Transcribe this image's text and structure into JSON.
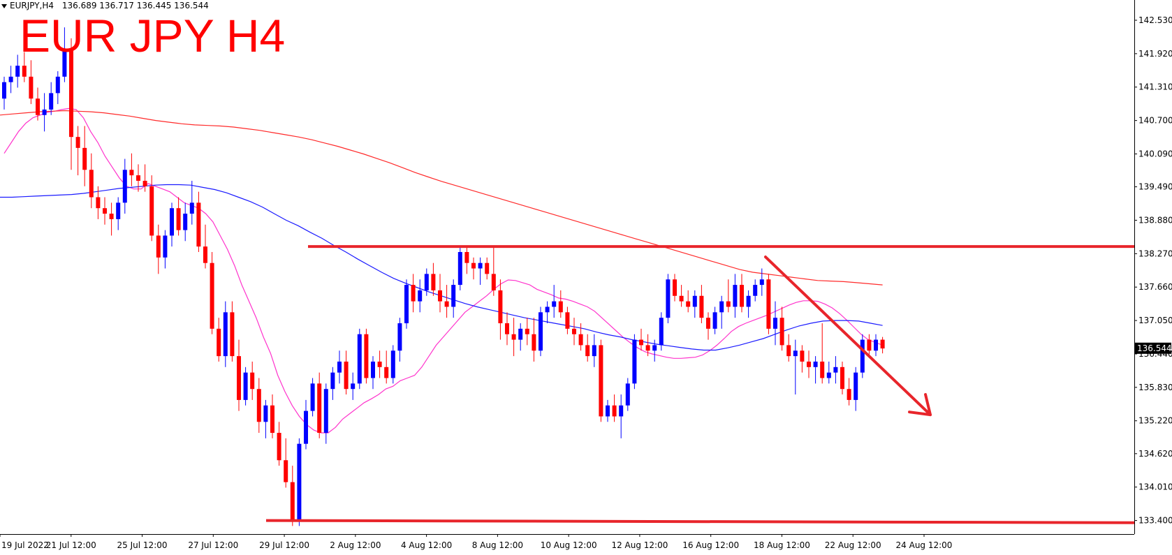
{
  "header": {
    "symbol": "EURJPY,H4",
    "ohlc": "136.689 136.717 136.445 136.544",
    "overlay_title": "EUR JPY H4"
  },
  "colors": {
    "bull": "#0000ff",
    "bear": "#ff0000",
    "ma_fast": "#ff33cc",
    "ma_mid": "#1a1aff",
    "ma_slow": "#ff2a2a",
    "drawing": "#e8252b"
  },
  "chart_data": {
    "type": "candlestick",
    "title": "EUR JPY H4",
    "y_axis": {
      "ticks": [
        "142.530",
        "141.920",
        "141.310",
        "140.700",
        "140.090",
        "139.490",
        "138.880",
        "138.270",
        "137.660",
        "137.050",
        "136.440",
        "135.830",
        "135.220",
        "134.620",
        "134.010",
        "133.400"
      ],
      "range": [
        133.28,
        142.67
      ],
      "current_price_label": "136.544"
    },
    "x_axis": {
      "ticks": [
        "19 Jul 2022",
        "21 Jul 12:00",
        "25 Jul 12:00",
        "27 Jul 12:00",
        "29 Jul 12:00",
        "2 Aug 12:00",
        "4 Aug 12:00",
        "8 Aug 12:00",
        "10 Aug 12:00",
        "12 Aug 12:00",
        "16 Aug 12:00",
        "18 Aug 12:00",
        "22 Aug 12:00",
        "24 Aug 12:00"
      ]
    },
    "candles": [
      [
        141.1,
        141.5,
        140.9,
        141.4
      ],
      [
        141.4,
        141.7,
        141.2,
        141.5
      ],
      [
        141.5,
        141.9,
        141.3,
        141.7
      ],
      [
        141.7,
        141.95,
        141.4,
        141.5
      ],
      [
        141.5,
        141.8,
        141.0,
        141.1
      ],
      [
        141.1,
        141.3,
        140.7,
        140.8
      ],
      [
        140.8,
        141.2,
        140.5,
        140.9
      ],
      [
        140.9,
        141.4,
        140.8,
        141.2
      ],
      [
        141.2,
        141.6,
        141.0,
        141.5
      ],
      [
        141.5,
        142.4,
        141.4,
        142.0
      ],
      [
        142.0,
        142.2,
        139.8,
        140.4
      ],
      [
        140.4,
        140.6,
        139.7,
        140.2
      ],
      [
        140.2,
        140.6,
        139.5,
        139.8
      ],
      [
        139.8,
        140.1,
        139.1,
        139.3
      ],
      [
        139.3,
        139.5,
        138.9,
        139.1
      ],
      [
        139.1,
        139.3,
        138.8,
        139.0
      ],
      [
        139.0,
        139.2,
        138.6,
        138.9
      ],
      [
        138.9,
        139.3,
        138.7,
        139.2
      ],
      [
        139.2,
        140.0,
        139.0,
        139.8
      ],
      [
        139.8,
        140.1,
        139.5,
        139.7
      ],
      [
        139.7,
        139.9,
        139.4,
        139.6
      ],
      [
        139.6,
        139.9,
        139.4,
        139.5
      ],
      [
        139.5,
        139.7,
        138.5,
        138.6
      ],
      [
        138.6,
        138.8,
        137.9,
        138.2
      ],
      [
        138.2,
        138.7,
        138.0,
        138.6
      ],
      [
        138.6,
        139.2,
        138.4,
        139.1
      ],
      [
        139.1,
        139.3,
        138.6,
        138.7
      ],
      [
        138.7,
        139.2,
        138.5,
        139.0
      ],
      [
        139.0,
        139.6,
        138.8,
        139.2
      ],
      [
        139.2,
        139.4,
        138.3,
        138.4
      ],
      [
        138.4,
        138.8,
        138.0,
        138.1
      ],
      [
        138.1,
        138.3,
        136.8,
        136.9
      ],
      [
        136.9,
        137.1,
        136.3,
        136.4
      ],
      [
        136.4,
        137.4,
        136.2,
        137.2
      ],
      [
        137.2,
        137.4,
        136.3,
        136.4
      ],
      [
        136.4,
        136.7,
        135.4,
        135.6
      ],
      [
        135.6,
        136.2,
        135.5,
        136.1
      ],
      [
        136.1,
        136.3,
        135.6,
        135.8
      ],
      [
        135.8,
        136.0,
        135.0,
        135.2
      ],
      [
        135.2,
        135.6,
        134.9,
        135.5
      ],
      [
        135.5,
        135.7,
        134.9,
        135.0
      ],
      [
        135.0,
        135.2,
        134.4,
        134.5
      ],
      [
        134.5,
        134.9,
        134.0,
        134.1
      ],
      [
        134.1,
        134.4,
        133.3,
        133.4
      ],
      [
        133.4,
        134.9,
        133.3,
        134.8
      ],
      [
        134.8,
        135.6,
        134.7,
        135.4
      ],
      [
        135.4,
        136.0,
        135.3,
        135.9
      ],
      [
        135.9,
        136.1,
        134.9,
        135.0
      ],
      [
        135.0,
        135.9,
        134.8,
        135.8
      ],
      [
        135.8,
        136.2,
        135.6,
        136.1
      ],
      [
        136.1,
        136.5,
        135.9,
        136.3
      ],
      [
        136.3,
        136.5,
        135.7,
        135.8
      ],
      [
        135.8,
        136.1,
        135.6,
        135.9
      ],
      [
        135.9,
        136.9,
        135.8,
        136.8
      ],
      [
        136.8,
        136.9,
        135.9,
        136.0
      ],
      [
        136.0,
        136.4,
        135.8,
        136.3
      ],
      [
        136.3,
        136.5,
        136.0,
        136.2
      ],
      [
        136.2,
        136.5,
        135.9,
        136.0
      ],
      [
        136.0,
        136.6,
        135.9,
        136.5
      ],
      [
        136.5,
        137.1,
        136.3,
        137.0
      ],
      [
        137.0,
        137.8,
        136.9,
        137.7
      ],
      [
        137.7,
        137.9,
        137.2,
        137.4
      ],
      [
        137.4,
        137.8,
        137.2,
        137.6
      ],
      [
        137.6,
        138.0,
        137.5,
        137.9
      ],
      [
        137.9,
        138.1,
        137.5,
        137.6
      ],
      [
        137.6,
        137.9,
        137.2,
        137.4
      ],
      [
        137.4,
        137.7,
        137.1,
        137.3
      ],
      [
        137.3,
        137.8,
        137.1,
        137.7
      ],
      [
        137.7,
        138.4,
        137.6,
        138.3
      ],
      [
        138.3,
        138.4,
        137.9,
        138.1
      ],
      [
        138.1,
        138.2,
        137.8,
        138.0
      ],
      [
        138.0,
        138.2,
        137.7,
        138.1
      ],
      [
        138.1,
        138.2,
        137.8,
        137.9
      ],
      [
        137.9,
        138.4,
        137.5,
        137.6
      ],
      [
        137.6,
        137.8,
        136.7,
        137.0
      ],
      [
        137.0,
        137.2,
        136.6,
        136.8
      ],
      [
        136.8,
        137.1,
        136.4,
        136.7
      ],
      [
        136.7,
        137.0,
        136.5,
        136.9
      ],
      [
        136.9,
        137.1,
        136.6,
        136.8
      ],
      [
        136.8,
        137.1,
        136.3,
        136.5
      ],
      [
        136.5,
        137.3,
        136.4,
        137.2
      ],
      [
        137.2,
        137.4,
        137.0,
        137.3
      ],
      [
        137.3,
        137.7,
        137.1,
        137.4
      ],
      [
        137.4,
        137.6,
        137.1,
        137.2
      ],
      [
        137.2,
        137.3,
        136.8,
        136.9
      ],
      [
        136.9,
        137.1,
        136.6,
        136.8
      ],
      [
        136.8,
        137.0,
        136.5,
        136.6
      ],
      [
        136.6,
        136.8,
        136.3,
        136.4
      ],
      [
        136.4,
        136.8,
        136.2,
        136.6
      ],
      [
        136.6,
        136.7,
        135.2,
        135.3
      ],
      [
        135.3,
        135.6,
        135.2,
        135.5
      ],
      [
        135.5,
        135.7,
        135.2,
        135.3
      ],
      [
        135.3,
        135.7,
        134.9,
        135.5
      ],
      [
        135.5,
        136.0,
        135.4,
        135.9
      ],
      [
        135.9,
        136.8,
        135.8,
        136.7
      ],
      [
        136.7,
        136.9,
        136.5,
        136.6
      ],
      [
        136.6,
        136.8,
        136.4,
        136.5
      ],
      [
        136.5,
        136.7,
        136.3,
        136.6
      ],
      [
        136.6,
        137.2,
        136.5,
        137.1
      ],
      [
        137.1,
        137.9,
        137.0,
        137.8
      ],
      [
        137.8,
        137.9,
        137.4,
        137.5
      ],
      [
        137.5,
        137.7,
        137.3,
        137.4
      ],
      [
        137.4,
        137.6,
        137.2,
        137.3
      ],
      [
        137.3,
        137.6,
        137.1,
        137.5
      ],
      [
        137.5,
        137.7,
        137.0,
        137.1
      ],
      [
        137.1,
        137.2,
        136.7,
        136.9
      ],
      [
        136.9,
        137.3,
        136.8,
        137.2
      ],
      [
        137.2,
        137.5,
        136.9,
        137.4
      ],
      [
        137.4,
        137.8,
        137.2,
        137.3
      ],
      [
        137.3,
        137.9,
        137.1,
        137.7
      ],
      [
        137.7,
        137.9,
        137.2,
        137.3
      ],
      [
        137.3,
        137.6,
        137.1,
        137.5
      ],
      [
        137.5,
        137.8,
        137.4,
        137.7
      ],
      [
        137.7,
        138.0,
        137.5,
        137.8
      ],
      [
        137.8,
        137.9,
        136.8,
        136.9
      ],
      [
        136.9,
        137.4,
        136.6,
        137.1
      ],
      [
        137.1,
        137.3,
        136.5,
        136.6
      ],
      [
        136.6,
        136.8,
        136.3,
        136.4
      ],
      [
        136.4,
        136.7,
        135.7,
        136.5
      ],
      [
        136.5,
        136.6,
        136.1,
        136.3
      ],
      [
        136.3,
        136.5,
        136.0,
        136.2
      ],
      [
        136.2,
        136.4,
        135.9,
        136.3
      ],
      [
        136.3,
        137.0,
        135.9,
        136.0
      ],
      [
        136.0,
        136.3,
        135.9,
        136.1
      ],
      [
        136.1,
        136.4,
        135.9,
        136.2
      ],
      [
        136.2,
        136.3,
        135.7,
        135.8
      ],
      [
        135.8,
        136.0,
        135.5,
        135.6
      ],
      [
        135.6,
        136.2,
        135.4,
        136.1
      ],
      [
        136.1,
        136.8,
        136.0,
        136.7
      ],
      [
        136.7,
        136.8,
        136.4,
        136.5
      ],
      [
        136.5,
        136.8,
        136.4,
        136.7
      ],
      [
        136.7,
        136.75,
        136.45,
        136.54
      ]
    ],
    "moving_averages": [
      {
        "color": "#ff33cc",
        "values": [
          140.1,
          140.3,
          140.5,
          140.65,
          140.75,
          140.8,
          140.85,
          140.87,
          140.9,
          140.92,
          140.9,
          140.75,
          140.5,
          140.3,
          140.05,
          139.85,
          139.65,
          139.5,
          139.45,
          139.45,
          139.55,
          139.5,
          139.45,
          139.4,
          139.3,
          139.2,
          139.15,
          139.1,
          139.0,
          138.85,
          138.6,
          138.35,
          138.05,
          137.7,
          137.4,
          137.1,
          136.75,
          136.45,
          136.05,
          135.75,
          135.5,
          135.3,
          135.15,
          135.05,
          135.0,
          135.0,
          135.1,
          135.25,
          135.35,
          135.45,
          135.55,
          135.62,
          135.7,
          135.8,
          135.85,
          135.95,
          136.0,
          136.05,
          136.2,
          136.4,
          136.6,
          136.75,
          136.9,
          137.05,
          137.2,
          137.3,
          137.4,
          137.5,
          137.62,
          137.72,
          137.79,
          137.78,
          137.74,
          137.7,
          137.62,
          137.57,
          137.52,
          137.46,
          137.44,
          137.4,
          137.35,
          137.3,
          137.22,
          137.1,
          136.98,
          136.86,
          136.74,
          136.64,
          136.55,
          136.48,
          136.44,
          136.41,
          136.38,
          136.36,
          136.36,
          136.37,
          136.38,
          136.42,
          136.5,
          136.6,
          136.72,
          136.85,
          136.94,
          137.0,
          137.05,
          137.1,
          137.15,
          137.21,
          137.27,
          137.33,
          137.38,
          137.41,
          137.41,
          137.4,
          137.35,
          137.28,
          137.18,
          137.06,
          136.93,
          136.8,
          136.7,
          136.65,
          136.6
        ]
      },
      {
        "color": "#1a1aff",
        "values": [
          139.3,
          139.3,
          139.31,
          139.32,
          139.33,
          139.34,
          139.35,
          139.37,
          139.4,
          139.43,
          139.46,
          139.48,
          139.5,
          139.52,
          139.53,
          139.53,
          139.52,
          139.48,
          139.44,
          139.38,
          139.3,
          139.22,
          139.12,
          139.0,
          138.88,
          138.78,
          138.66,
          138.55,
          138.42,
          138.3,
          138.17,
          138.05,
          137.93,
          137.82,
          137.73,
          137.65,
          137.57,
          137.5,
          137.43,
          137.36,
          137.3,
          137.25,
          137.2,
          137.15,
          137.1,
          137.06,
          137.02,
          136.98,
          136.94,
          136.9,
          136.84,
          136.79,
          136.75,
          136.7,
          136.66,
          136.62,
          136.59,
          136.56,
          136.53,
          136.51,
          136.51,
          136.55,
          136.6,
          136.66,
          136.72,
          136.8,
          136.88,
          136.95,
          137.0,
          137.04,
          137.05,
          137.05,
          137.04,
          137.0,
          136.96
        ]
      },
      {
        "color": "#ff2a2a",
        "values": [
          140.8,
          140.82,
          140.84,
          140.86,
          140.87,
          140.88,
          140.87,
          140.86,
          140.84,
          140.81,
          140.78,
          140.74,
          140.7,
          140.67,
          140.64,
          140.62,
          140.61,
          140.6,
          140.58,
          140.55,
          140.52,
          140.48,
          140.44,
          140.4,
          140.35,
          140.29,
          140.23,
          140.16,
          140.09,
          140.01,
          139.93,
          139.84,
          139.75,
          139.67,
          139.59,
          139.52,
          139.45,
          139.38,
          139.31,
          139.24,
          139.17,
          139.1,
          139.03,
          138.96,
          138.89,
          138.82,
          138.75,
          138.68,
          138.61,
          138.54,
          138.47,
          138.4,
          138.33,
          138.26,
          138.19,
          138.12,
          138.05,
          137.98,
          137.93,
          137.9,
          137.87,
          137.84,
          137.81,
          137.78,
          137.77,
          137.76,
          137.74,
          137.72,
          137.7
        ]
      }
    ]
  }
}
